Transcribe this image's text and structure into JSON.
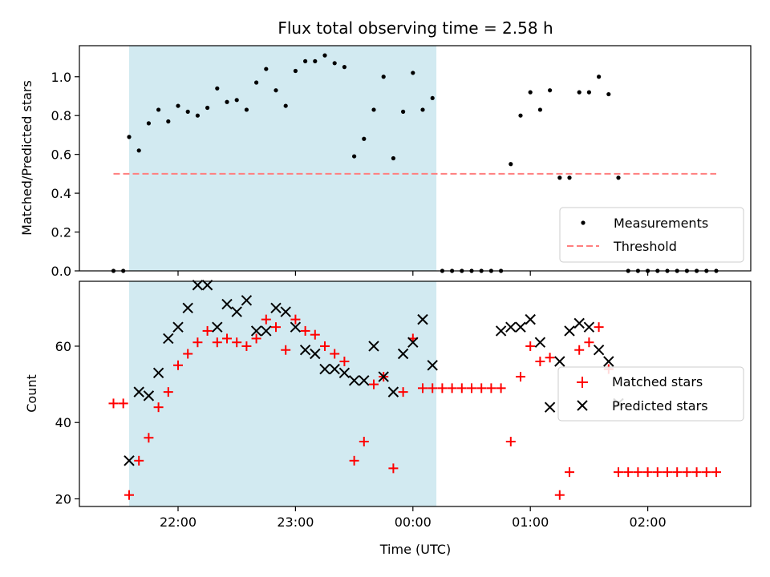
{
  "chart_data": [
    {
      "panel": "top",
      "type": "scatter",
      "title": "Flux total observing time = 2.58 h",
      "ylabel": "Matched/Predicted stars",
      "xlabel": "",
      "ylim": [
        0,
        1.16
      ],
      "yticks": [
        0.0,
        0.2,
        0.4,
        0.6,
        0.8,
        1.0
      ],
      "ytick_labels": [
        "0.0",
        "0.2",
        "0.4",
        "0.6",
        "0.8",
        "1.0"
      ],
      "shaded_region": {
        "x_start": "21:35",
        "x_end": "00:12",
        "color": "#add8e6"
      },
      "threshold": {
        "value": 0.5,
        "x_start": "21:27",
        "x_end": "02:35",
        "color": "#ff7f7f",
        "name": "Threshold"
      },
      "series": [
        {
          "name": "Measurements",
          "color": "#000000",
          "x": [
            "21:27",
            "21:32",
            "21:35",
            "21:40",
            "21:45",
            "21:50",
            "21:55",
            "22:00",
            "22:05",
            "22:10",
            "22:15",
            "22:20",
            "22:25",
            "22:30",
            "22:35",
            "22:40",
            "22:45",
            "22:50",
            "22:55",
            "23:00",
            "23:05",
            "23:10",
            "23:15",
            "23:20",
            "23:25",
            "23:30",
            "23:35",
            "23:40",
            "23:45",
            "23:50",
            "23:55",
            "00:00",
            "00:05",
            "00:10",
            "00:15",
            "00:20",
            "00:25",
            "00:30",
            "00:35",
            "00:40",
            "00:45",
            "00:50",
            "00:55",
            "01:00",
            "01:05",
            "01:10",
            "01:15",
            "01:20",
            "01:25",
            "01:30",
            "01:35",
            "01:40",
            "01:45",
            "01:50",
            "01:55",
            "02:00",
            "02:05",
            "02:10",
            "02:15",
            "02:20",
            "02:25",
            "02:30",
            "02:35"
          ],
          "y": [
            0,
            0,
            0.69,
            0.62,
            0.76,
            0.83,
            0.77,
            0.85,
            0.82,
            0.8,
            0.84,
            0.94,
            0.87,
            0.88,
            0.83,
            0.97,
            1.04,
            0.93,
            0.85,
            1.03,
            1.08,
            1.08,
            1.11,
            1.07,
            1.05,
            0.59,
            0.68,
            0.83,
            1.0,
            0.58,
            0.82,
            1.02,
            0.83,
            0.89,
            0,
            0,
            0,
            0,
            0,
            0,
            0,
            0.55,
            0.8,
            0.92,
            0.83,
            0.93,
            0.48,
            0.48,
            0.92,
            0.92,
            1.0,
            0.91,
            0.48,
            0,
            0,
            0,
            0,
            0,
            0,
            0,
            0,
            0,
            0
          ]
        }
      ],
      "legend": {
        "placement": "lower right",
        "entries": [
          "Measurements",
          "Threshold"
        ]
      }
    },
    {
      "panel": "bottom",
      "type": "scatter",
      "title": "",
      "ylabel": "Count",
      "xlabel": "Time (UTC)",
      "ylim": [
        18,
        77
      ],
      "yticks": [
        20,
        40,
        60
      ],
      "ytick_labels": [
        "20",
        "40",
        "60"
      ],
      "xticks": [
        "22:00",
        "23:00",
        "00:00",
        "01:00",
        "02:00"
      ],
      "shaded_region": {
        "x_start": "21:35",
        "x_end": "00:12",
        "color": "#add8e6"
      },
      "series": [
        {
          "name": "Matched stars",
          "color": "#ff0000",
          "marker": "+",
          "x": [
            "21:27",
            "21:32",
            "21:35",
            "21:40",
            "21:45",
            "21:50",
            "21:55",
            "22:00",
            "22:05",
            "22:10",
            "22:15",
            "22:20",
            "22:25",
            "22:30",
            "22:35",
            "22:40",
            "22:45",
            "22:50",
            "22:55",
            "23:00",
            "23:05",
            "23:10",
            "23:15",
            "23:20",
            "23:25",
            "23:30",
            "23:35",
            "23:40",
            "23:45",
            "23:50",
            "23:55",
            "00:00",
            "00:05",
            "00:10",
            "00:15",
            "00:20",
            "00:25",
            "00:30",
            "00:35",
            "00:40",
            "00:45",
            "00:50",
            "00:55",
            "01:00",
            "01:05",
            "01:10",
            "01:15",
            "01:20",
            "01:25",
            "01:30",
            "01:35",
            "01:40",
            "01:45",
            "01:50",
            "01:55",
            "02:00",
            "02:05",
            "02:10",
            "02:15",
            "02:20",
            "02:25",
            "02:30",
            "02:35"
          ],
          "y": [
            45,
            45,
            21,
            30,
            36,
            44,
            48,
            55,
            58,
            61,
            64,
            61,
            62,
            61,
            60,
            62,
            67,
            65,
            59,
            67,
            64,
            63,
            60,
            58,
            56,
            30,
            35,
            50,
            52,
            28,
            48,
            62,
            49,
            49,
            49,
            49,
            49,
            49,
            49,
            49,
            49,
            35,
            52,
            60,
            56,
            57,
            21,
            27,
            59,
            61,
            65,
            54,
            27,
            27,
            27,
            27,
            27,
            27,
            27,
            27,
            27,
            27,
            27
          ]
        },
        {
          "name": "Predicted stars",
          "color": "#000000",
          "marker": "x",
          "x": [
            "21:35",
            "21:40",
            "21:45",
            "21:50",
            "21:55",
            "22:00",
            "22:05",
            "22:10",
            "22:15",
            "22:20",
            "22:25",
            "22:30",
            "22:35",
            "22:40",
            "22:45",
            "22:50",
            "22:55",
            "23:00",
            "23:05",
            "23:10",
            "23:15",
            "23:20",
            "23:25",
            "23:30",
            "23:35",
            "23:40",
            "23:45",
            "23:50",
            "23:55",
            "00:00",
            "00:05",
            "00:10",
            "00:45",
            "00:50",
            "00:55",
            "01:00",
            "01:05",
            "01:10",
            "01:15",
            "01:20",
            "01:25",
            "01:30",
            "01:35",
            "01:40",
            "01:45"
          ],
          "y": [
            30,
            48,
            47,
            53,
            62,
            65,
            70,
            76,
            76,
            65,
            71,
            69,
            72,
            64,
            64,
            70,
            69,
            65,
            59,
            58,
            54,
            54,
            53,
            51,
            51,
            60,
            52,
            48,
            58,
            61,
            67,
            55,
            64,
            65,
            65,
            67,
            61,
            44,
            56,
            64,
            66,
            65,
            59,
            56,
            45
          ]
        }
      ],
      "legend": {
        "placement": "center right",
        "entries": [
          "Matched stars",
          "Predicted stars"
        ]
      }
    }
  ]
}
